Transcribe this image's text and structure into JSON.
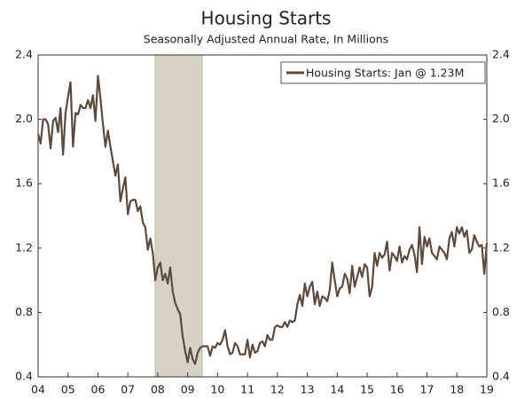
{
  "chart_data": {
    "type": "line",
    "title": "Housing Starts",
    "subtitle": "Seasonally Adjusted Annual Rate, In Millions",
    "categories": [
      "04",
      null,
      null,
      null,
      null,
      null,
      null,
      null,
      null,
      null,
      null,
      null,
      "05",
      null,
      null,
      null,
      null,
      null,
      null,
      null,
      null,
      null,
      null,
      null,
      "06",
      null,
      null,
      null,
      null,
      null,
      null,
      null,
      null,
      null,
      null,
      null,
      "07",
      null,
      null,
      null,
      null,
      null,
      null,
      null,
      null,
      null,
      null,
      null,
      "08",
      null,
      null,
      null,
      null,
      null,
      null,
      null,
      null,
      null,
      null,
      null,
      "09",
      null,
      null,
      null,
      null,
      null,
      null,
      null,
      null,
      null,
      null,
      null,
      "10",
      null,
      null,
      null,
      null,
      null,
      null,
      null,
      null,
      null,
      null,
      null,
      "11",
      null,
      null,
      null,
      null,
      null,
      null,
      null,
      null,
      null,
      null,
      null,
      "12",
      null,
      null,
      null,
      null,
      null,
      null,
      null,
      null,
      null,
      null,
      null,
      "13",
      null,
      null,
      null,
      null,
      null,
      null,
      null,
      null,
      null,
      null,
      null,
      "14",
      null,
      null,
      null,
      null,
      null,
      null,
      null,
      null,
      null,
      null,
      null,
      "15",
      null,
      null,
      null,
      null,
      null,
      null,
      null,
      null,
      null,
      null,
      null,
      "16",
      null,
      null,
      null,
      null,
      null,
      null,
      null,
      null,
      null,
      null,
      null,
      "17",
      null,
      null,
      null,
      null,
      null,
      null,
      null,
      null,
      null,
      null,
      null,
      "18",
      null,
      null,
      null,
      null,
      null,
      null,
      null,
      null,
      null,
      null,
      null,
      "19"
    ],
    "series": [
      {
        "name": "Housing Starts: Jan @ 1.23M",
        "color": "#5a4a3f",
        "values": [
          1.91,
          1.85,
          2.0,
          2.0,
          1.97,
          1.82,
          1.99,
          2.01,
          1.92,
          2.07,
          1.78,
          2.04,
          2.14,
          2.23,
          1.83,
          2.04,
          2.03,
          2.09,
          2.07,
          2.07,
          2.12,
          2.07,
          2.15,
          1.99,
          2.27,
          2.13,
          1.97,
          1.83,
          1.93,
          1.83,
          1.74,
          1.65,
          1.72,
          1.49,
          1.57,
          1.64,
          1.41,
          1.49,
          1.5,
          1.5,
          1.43,
          1.46,
          1.36,
          1.33,
          1.19,
          1.26,
          1.17,
          1.0,
          1.08,
          1.11,
          1.0,
          1.04,
          0.98,
          1.08,
          0.93,
          0.86,
          0.82,
          0.79,
          0.65,
          0.56,
          0.49,
          0.58,
          0.51,
          0.48,
          0.55,
          0.58,
          0.59,
          0.59,
          0.59,
          0.53,
          0.59,
          0.58,
          0.61,
          0.6,
          0.63,
          0.69,
          0.59,
          0.54,
          0.55,
          0.61,
          0.59,
          0.54,
          0.54,
          0.54,
          0.63,
          0.52,
          0.6,
          0.55,
          0.56,
          0.61,
          0.62,
          0.59,
          0.66,
          0.63,
          0.63,
          0.71,
          0.72,
          0.71,
          0.71,
          0.74,
          0.71,
          0.75,
          0.74,
          0.75,
          0.85,
          0.91,
          0.84,
          0.98,
          0.9,
          0.96,
          0.99,
          0.85,
          0.93,
          0.84,
          0.9,
          0.89,
          0.87,
          0.94,
          1.11,
          1.0,
          0.9,
          0.95,
          0.96,
          1.04,
          1.01,
          0.92,
          1.09,
          0.96,
          1.02,
          1.08,
          1.02,
          1.1,
          1.08,
          0.9,
          0.96,
          1.17,
          1.09,
          1.17,
          1.14,
          1.16,
          1.24,
          1.06,
          1.17,
          1.15,
          1.12,
          1.21,
          1.11,
          1.15,
          1.13,
          1.19,
          1.22,
          1.16,
          1.05,
          1.33,
          1.1,
          1.27,
          1.21,
          1.26,
          1.17,
          1.15,
          1.13,
          1.21,
          1.19,
          1.17,
          1.13,
          1.26,
          1.3,
          1.21,
          1.33,
          1.29,
          1.33,
          1.27,
          1.31,
          1.17,
          1.19,
          1.28,
          1.24,
          1.21,
          1.22,
          1.04,
          1.23
        ]
      }
    ],
    "ylim": [
      0.4,
      2.4
    ],
    "yticks": [
      0.4,
      0.8,
      1.2,
      1.6,
      {
        "value": 2,
        "label": "2.0"
      },
      2.4
    ],
    "legend": "upper right",
    "grid": false
  }
}
